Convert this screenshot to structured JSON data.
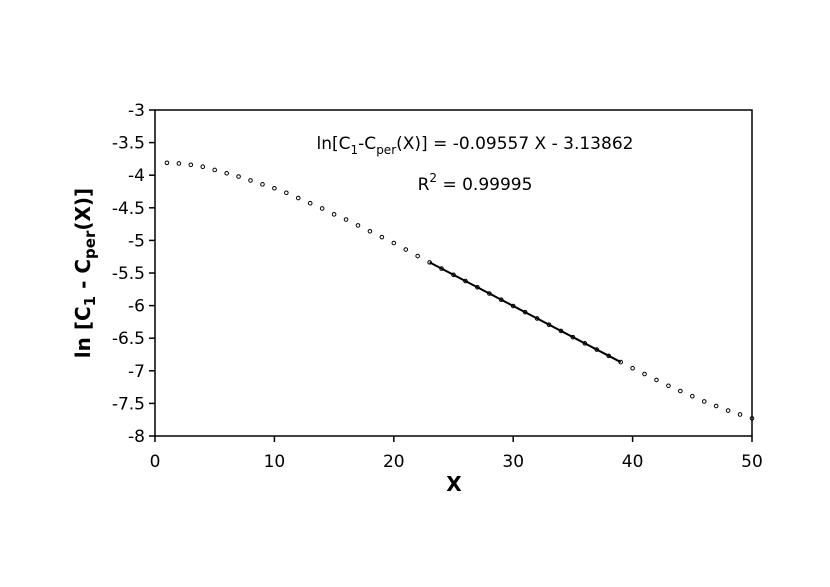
{
  "chart_data": {
    "type": "scatter",
    "x_label": "X",
    "y_label_parts": [
      "ln [C",
      "1",
      " - C",
      "per",
      "(X)]"
    ],
    "annotation_equation_parts": [
      "ln[C",
      "1",
      "-C",
      "per",
      "(X)] = -0.09557 X - 3.13862"
    ],
    "annotation_r2_parts": [
      "R",
      "2",
      " = 0.99995"
    ],
    "xlim": [
      0,
      50
    ],
    "xticks": [
      0,
      10,
      20,
      30,
      40,
      50
    ],
    "ylim": [
      -8,
      -3
    ],
    "yticks": [
      -3,
      -3.5,
      -4,
      -4.5,
      -5,
      -5.5,
      -6,
      -6.5,
      -7,
      -7.5,
      -8
    ],
    "series": [
      {
        "style": "dots",
        "color": "#000000",
        "x": [
          1,
          2,
          3,
          4,
          5,
          6,
          7,
          8,
          9,
          10,
          11,
          12,
          13,
          14,
          15,
          16,
          17,
          18,
          19,
          20,
          21,
          22,
          23,
          24,
          25,
          26,
          27,
          28,
          29,
          30,
          31,
          32,
          33,
          34,
          35,
          36,
          37,
          38,
          39,
          40,
          41,
          42,
          43,
          44,
          45,
          46,
          47,
          48,
          49,
          50
        ],
        "values": [
          -3.81,
          -3.82,
          -3.84,
          -3.87,
          -3.92,
          -3.97,
          -4.02,
          -4.08,
          -4.14,
          -4.2,
          -4.27,
          -4.35,
          -4.43,
          -4.51,
          -4.6,
          -4.68,
          -4.77,
          -4.86,
          -4.95,
          -5.04,
          -5.14,
          -5.24,
          -5.337,
          -5.432,
          -5.528,
          -5.623,
          -5.719,
          -5.815,
          -5.91,
          -6.006,
          -6.101,
          -6.197,
          -6.293,
          -6.388,
          -6.484,
          -6.579,
          -6.675,
          -6.771,
          -6.866,
          -6.96,
          -7.05,
          -7.14,
          -7.23,
          -7.31,
          -7.39,
          -7.47,
          -7.54,
          -7.61,
          -7.67,
          -7.73
        ]
      },
      {
        "style": "line",
        "color": "#000000",
        "x": [
          23,
          39
        ],
        "values": [
          -5.337,
          -6.866
        ]
      }
    ]
  }
}
